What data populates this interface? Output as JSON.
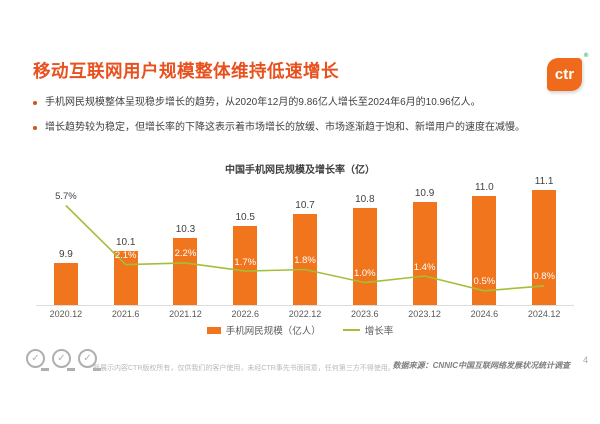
{
  "slide": {
    "title": "移动互联网用户规模整体维持低速增长",
    "bullets": [
      "手机网民规模整体呈现稳步增长的趋势，从2020年12月的9.86亿人增长至2024年6月的10.96亿人。",
      "增长趋势较为稳定，但增长率的下降这表示着市场增长的放缓、市场逐渐趋于饱和、新增用户的速度在减慢。"
    ],
    "page_number": "4"
  },
  "logo": {
    "text": "ctr",
    "registered_mark": "®"
  },
  "chart_data": {
    "type": "bar",
    "title": "中国手机网民规模及增长率（亿）",
    "categories": [
      "2020.12",
      "2021.6",
      "2021.12",
      "2022.6",
      "2022.12",
      "2023.6",
      "2023.12",
      "2024.6",
      "2024.12"
    ],
    "series": [
      {
        "name": "手机网民规模（亿人）",
        "type": "bar",
        "values": [
          9.9,
          10.1,
          10.3,
          10.5,
          10.7,
          10.8,
          10.9,
          11.0,
          11.1
        ],
        "labels": [
          "9.9",
          "10.1",
          "10.3",
          "10.5",
          "10.7",
          "10.8",
          "10.9",
          "11.0",
          "11.1"
        ],
        "color": "#F0751D",
        "ylim": [
          9.2,
          11.2
        ]
      },
      {
        "name": "增长率",
        "type": "line",
        "values": [
          5.7,
          2.1,
          2.2,
          1.7,
          1.8,
          1.0,
          1.4,
          0.5,
          0.8
        ],
        "labels": [
          "5.7%",
          "2.1%",
          "2.2%",
          "1.7%",
          "1.8%",
          "1.0%",
          "1.4%",
          "0.5%",
          "0.8%"
        ],
        "color": "#A2C037",
        "ylim": [
          0,
          6
        ]
      }
    ],
    "legend_position": "bottom",
    "grid": false
  },
  "footer": {
    "disclaimer": "所展示内容CTR版权所有，仅供我们的客户使用，未经CTR事先书面同意，任何第三方不得使用。",
    "source": "数据来源：CNNIC中国互联网络发展状况统计调查"
  },
  "colors": {
    "title_accent": "#E8501E",
    "bar": "#F0751D",
    "line": "#A2C037",
    "text_dark": "#3F3F3F",
    "logo_orange": "#EF6A1B"
  }
}
